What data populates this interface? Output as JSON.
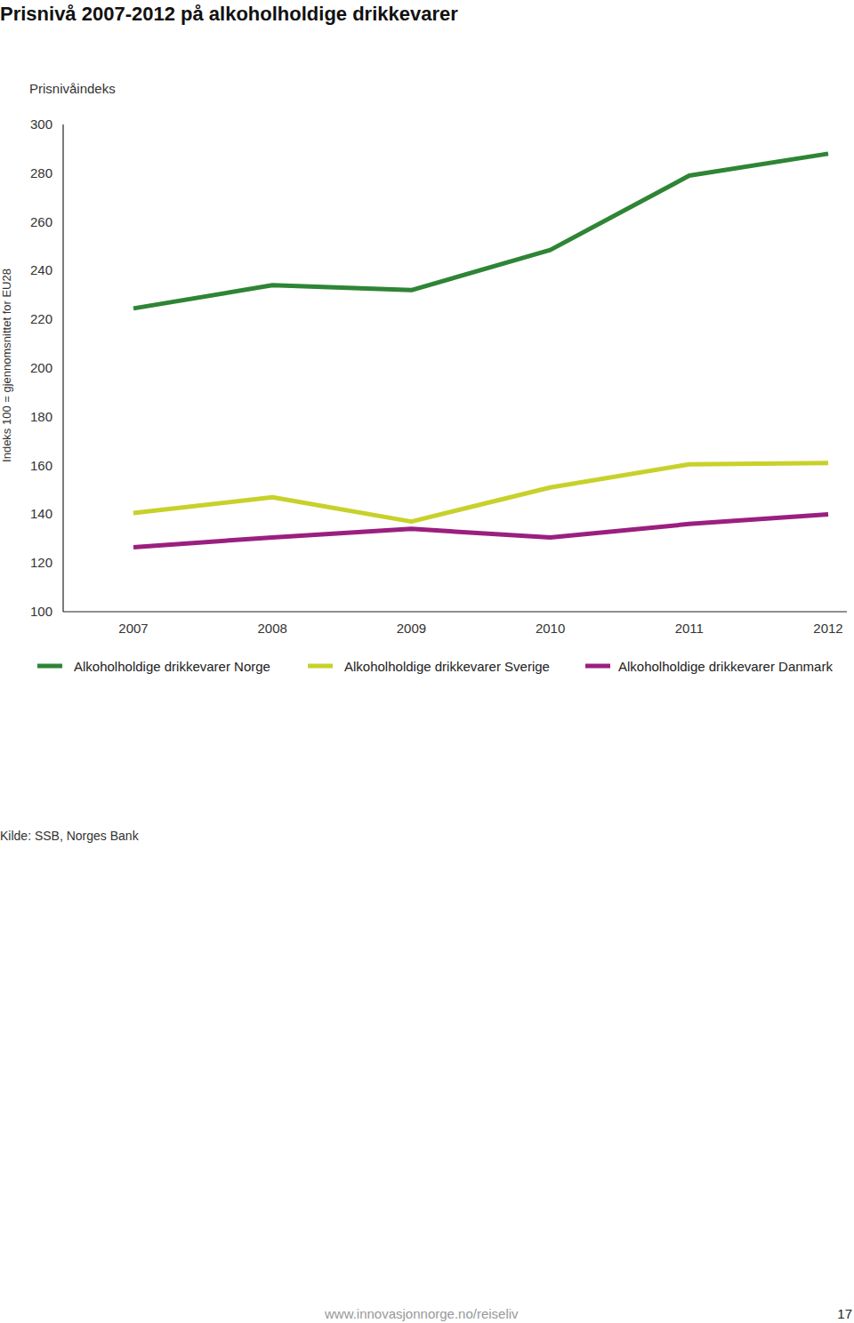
{
  "chart_data": {
    "type": "line",
    "title": "Prisnivå 2007-2012 på alkoholholdige drikkevarer",
    "subtitle": "Prisnivåindeks",
    "y_label": "Indeks 100 = gjennomsnittet for EU28",
    "categories": [
      "2007",
      "2008",
      "2009",
      "2010",
      "2011",
      "2012"
    ],
    "series": [
      {
        "name": "Alkoholholdige drikkevarer Norge",
        "color": "#2e8535",
        "line_style": "solid",
        "values": [
          224.5,
          234,
          232,
          248.5,
          279,
          288
        ]
      },
      {
        "name": "Alkoholholdige drikkevarer Sverige",
        "color": "#c8d12a",
        "line_style": "solid",
        "values": [
          140.5,
          147,
          137,
          151,
          160.5,
          161
        ]
      },
      {
        "name": "Alkoholholdige drikkevarer Danmark",
        "color": "#9b1f7e",
        "line_style": "solid",
        "values": [
          126.5,
          130.5,
          134,
          130.5,
          136,
          140
        ]
      }
    ],
    "ylim": [
      100,
      300
    ],
    "yticks": [
      100,
      120,
      140,
      160,
      180,
      200,
      220,
      240,
      260,
      280,
      300
    ],
    "grid": false,
    "legend": "bottom",
    "source": "Kilde: SSB, Norges Bank"
  },
  "footer": {
    "url": "www.innovasjonnorge.no/reiseliv",
    "page": "17"
  }
}
